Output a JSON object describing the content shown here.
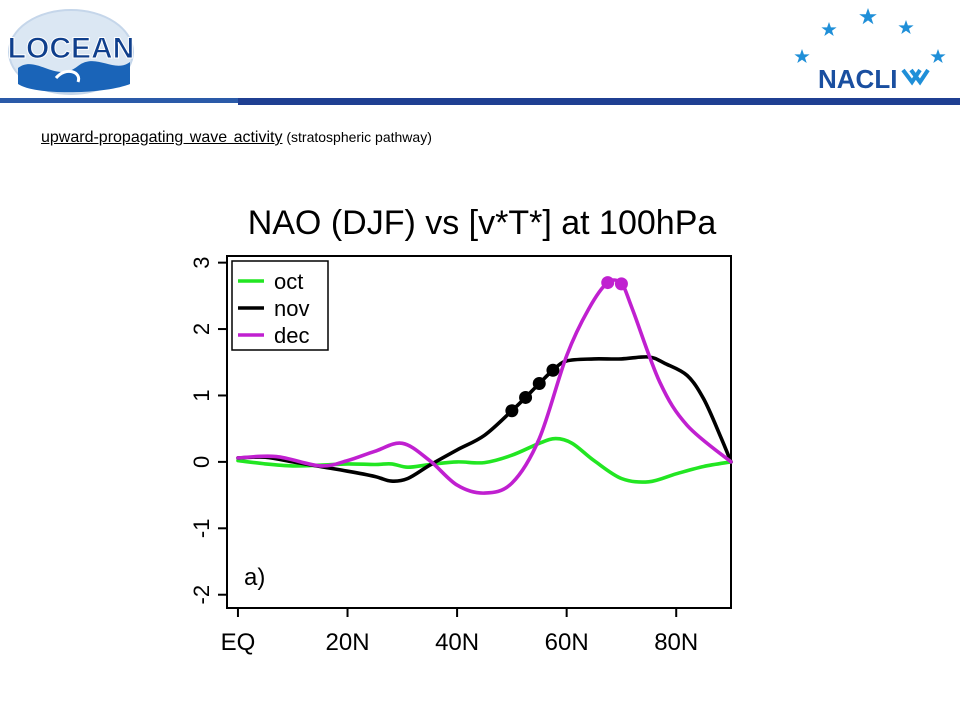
{
  "header": {
    "left_logo_text": "LOCEAN",
    "right_logo_text": "NACLI",
    "subtitle_main": "upward-propagating  wave activity",
    "subtitle_paren": " (stratospheric pathway)",
    "colors": {
      "bar": "#1f3f92",
      "logo_blue": "#1a64b8",
      "stars": "#1f8fd8"
    }
  },
  "chart_data": {
    "type": "line",
    "title": "NAO (DJF) vs [v*T*] at 100hPa",
    "panel_label": "a)",
    "xlabel": "",
    "ylabel": "",
    "xlim": [
      -2,
      90
    ],
    "ylim": [
      -2.2,
      3.1
    ],
    "x_ticks": [
      0,
      20,
      40,
      60,
      80
    ],
    "x_tick_labels": [
      "EQ",
      "20N",
      "40N",
      "60N",
      "80N"
    ],
    "y_ticks": [
      -2,
      -1,
      0,
      1,
      2,
      3
    ],
    "y_tick_labels": [
      "-2",
      "-1",
      "0",
      "1",
      "2",
      "3"
    ],
    "legend_position": "top-left",
    "series": [
      {
        "name": "oct",
        "color": "#22e622",
        "x": [
          0,
          5,
          10,
          15,
          20,
          25,
          28,
          31,
          35,
          40,
          45,
          50,
          55,
          58,
          61,
          65,
          70,
          75,
          80,
          85,
          90
        ],
        "y": [
          0.02,
          -0.03,
          -0.06,
          -0.05,
          -0.03,
          -0.04,
          -0.03,
          -0.08,
          -0.04,
          0.0,
          -0.01,
          0.1,
          0.28,
          0.35,
          0.28,
          0.02,
          -0.25,
          -0.3,
          -0.18,
          -0.07,
          0.0
        ],
        "highlighted": []
      },
      {
        "name": "nov",
        "color": "#000000",
        "x": [
          0,
          5,
          10,
          15,
          20,
          25,
          28,
          31,
          35,
          40,
          45,
          50,
          52.5,
          55,
          57.5,
          60,
          65,
          70,
          75,
          78,
          82,
          85,
          88,
          90
        ],
        "y": [
          0.06,
          0.07,
          0.0,
          -0.07,
          -0.14,
          -0.22,
          -0.29,
          -0.25,
          -0.05,
          0.18,
          0.4,
          0.77,
          0.97,
          1.18,
          1.38,
          1.52,
          1.55,
          1.55,
          1.58,
          1.48,
          1.3,
          0.95,
          0.4,
          0.0
        ],
        "highlighted": [
          50,
          52.5,
          55,
          57.5
        ]
      },
      {
        "name": "dec",
        "color": "#c020d0",
        "x": [
          0,
          7,
          15,
          20,
          25,
          30,
          35,
          40,
          45,
          50,
          55,
          60,
          64,
          67.5,
          70,
          72,
          77,
          82,
          90
        ],
        "y": [
          0.06,
          0.08,
          -0.06,
          0.02,
          0.16,
          0.28,
          0.02,
          -0.35,
          -0.47,
          -0.32,
          0.35,
          1.6,
          2.3,
          2.7,
          2.68,
          2.3,
          1.2,
          0.55,
          0.0
        ],
        "highlighted": [
          67.5,
          70
        ]
      }
    ]
  }
}
